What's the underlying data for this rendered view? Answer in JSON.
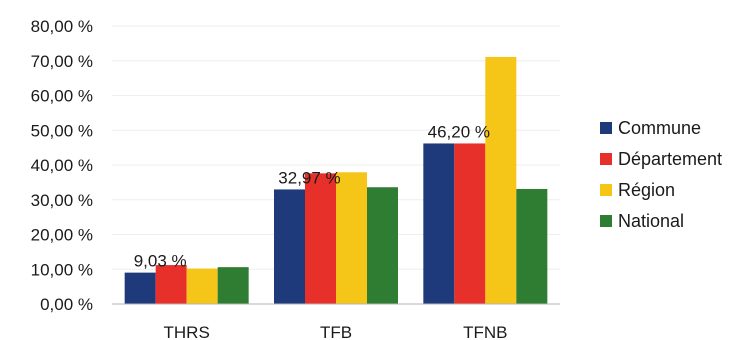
{
  "chart_data": {
    "type": "bar",
    "categories": [
      "THRS",
      "TFB",
      "TFNB"
    ],
    "series": [
      {
        "name": "Commune",
        "color": "#1f3a7a",
        "values": [
          9.03,
          32.97,
          46.2
        ]
      },
      {
        "name": "Département",
        "color": "#e8302a",
        "values": [
          11.2,
          37.6,
          46.2
        ]
      },
      {
        "name": "Région",
        "color": "#f5c518",
        "values": [
          10.2,
          37.9,
          71.1
        ]
      },
      {
        "name": "National",
        "color": "#2e7d32",
        "values": [
          10.6,
          33.6,
          33.1
        ]
      }
    ],
    "data_labels": [
      {
        "series": "Commune",
        "category": "THRS",
        "text": "9,03 %"
      },
      {
        "series": "Commune",
        "category": "TFB",
        "text": "32,97 %"
      },
      {
        "series": "Commune",
        "category": "TFNB",
        "text": "46,20 %"
      }
    ],
    "y_ticks": [
      "0,00 %",
      "10,00 %",
      "20,00 %",
      "30,00 %",
      "40,00 %",
      "50,00 %",
      "60,00 %",
      "70,00 %",
      "80,00 %"
    ],
    "ylim": [
      0,
      80
    ],
    "legend_position": "right",
    "grid": true
  }
}
